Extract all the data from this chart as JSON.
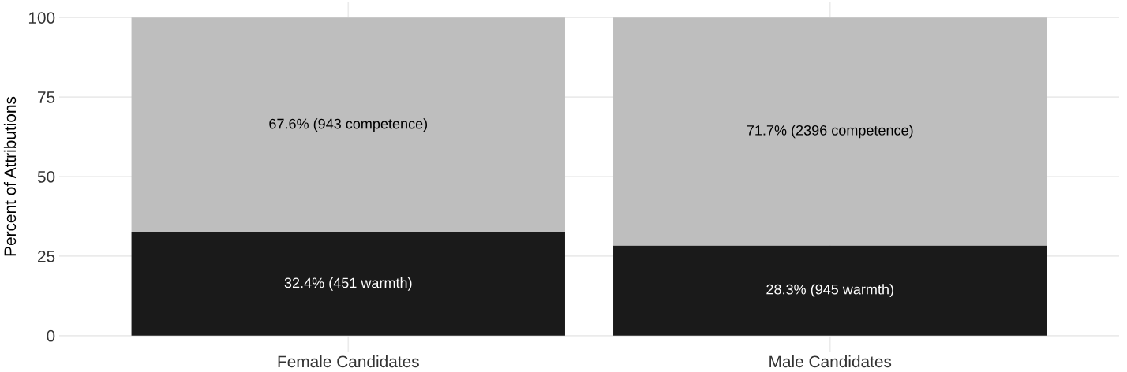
{
  "chart_data": {
    "type": "bar",
    "stacked": true,
    "ylabel": "Percent of Attributions",
    "categories": [
      "Female Candidates",
      "Male Candidates"
    ],
    "series": [
      {
        "color": "#1a1a1a",
        "values": [
          32.4,
          28.3
        ],
        "value_labels": [
          "32.4% (451 warmth)",
          "28.3% (945 warmth)"
        ]
      },
      {
        "color": "#bebebe",
        "values": [
          67.6,
          71.7
        ],
        "value_labels": [
          "67.6% (943 competence)",
          "71.7% (2396 competence)"
        ]
      }
    ],
    "ylim": [
      -5,
      105
    ],
    "yticks": [
      0,
      25,
      50,
      75,
      100
    ],
    "grid": true
  }
}
